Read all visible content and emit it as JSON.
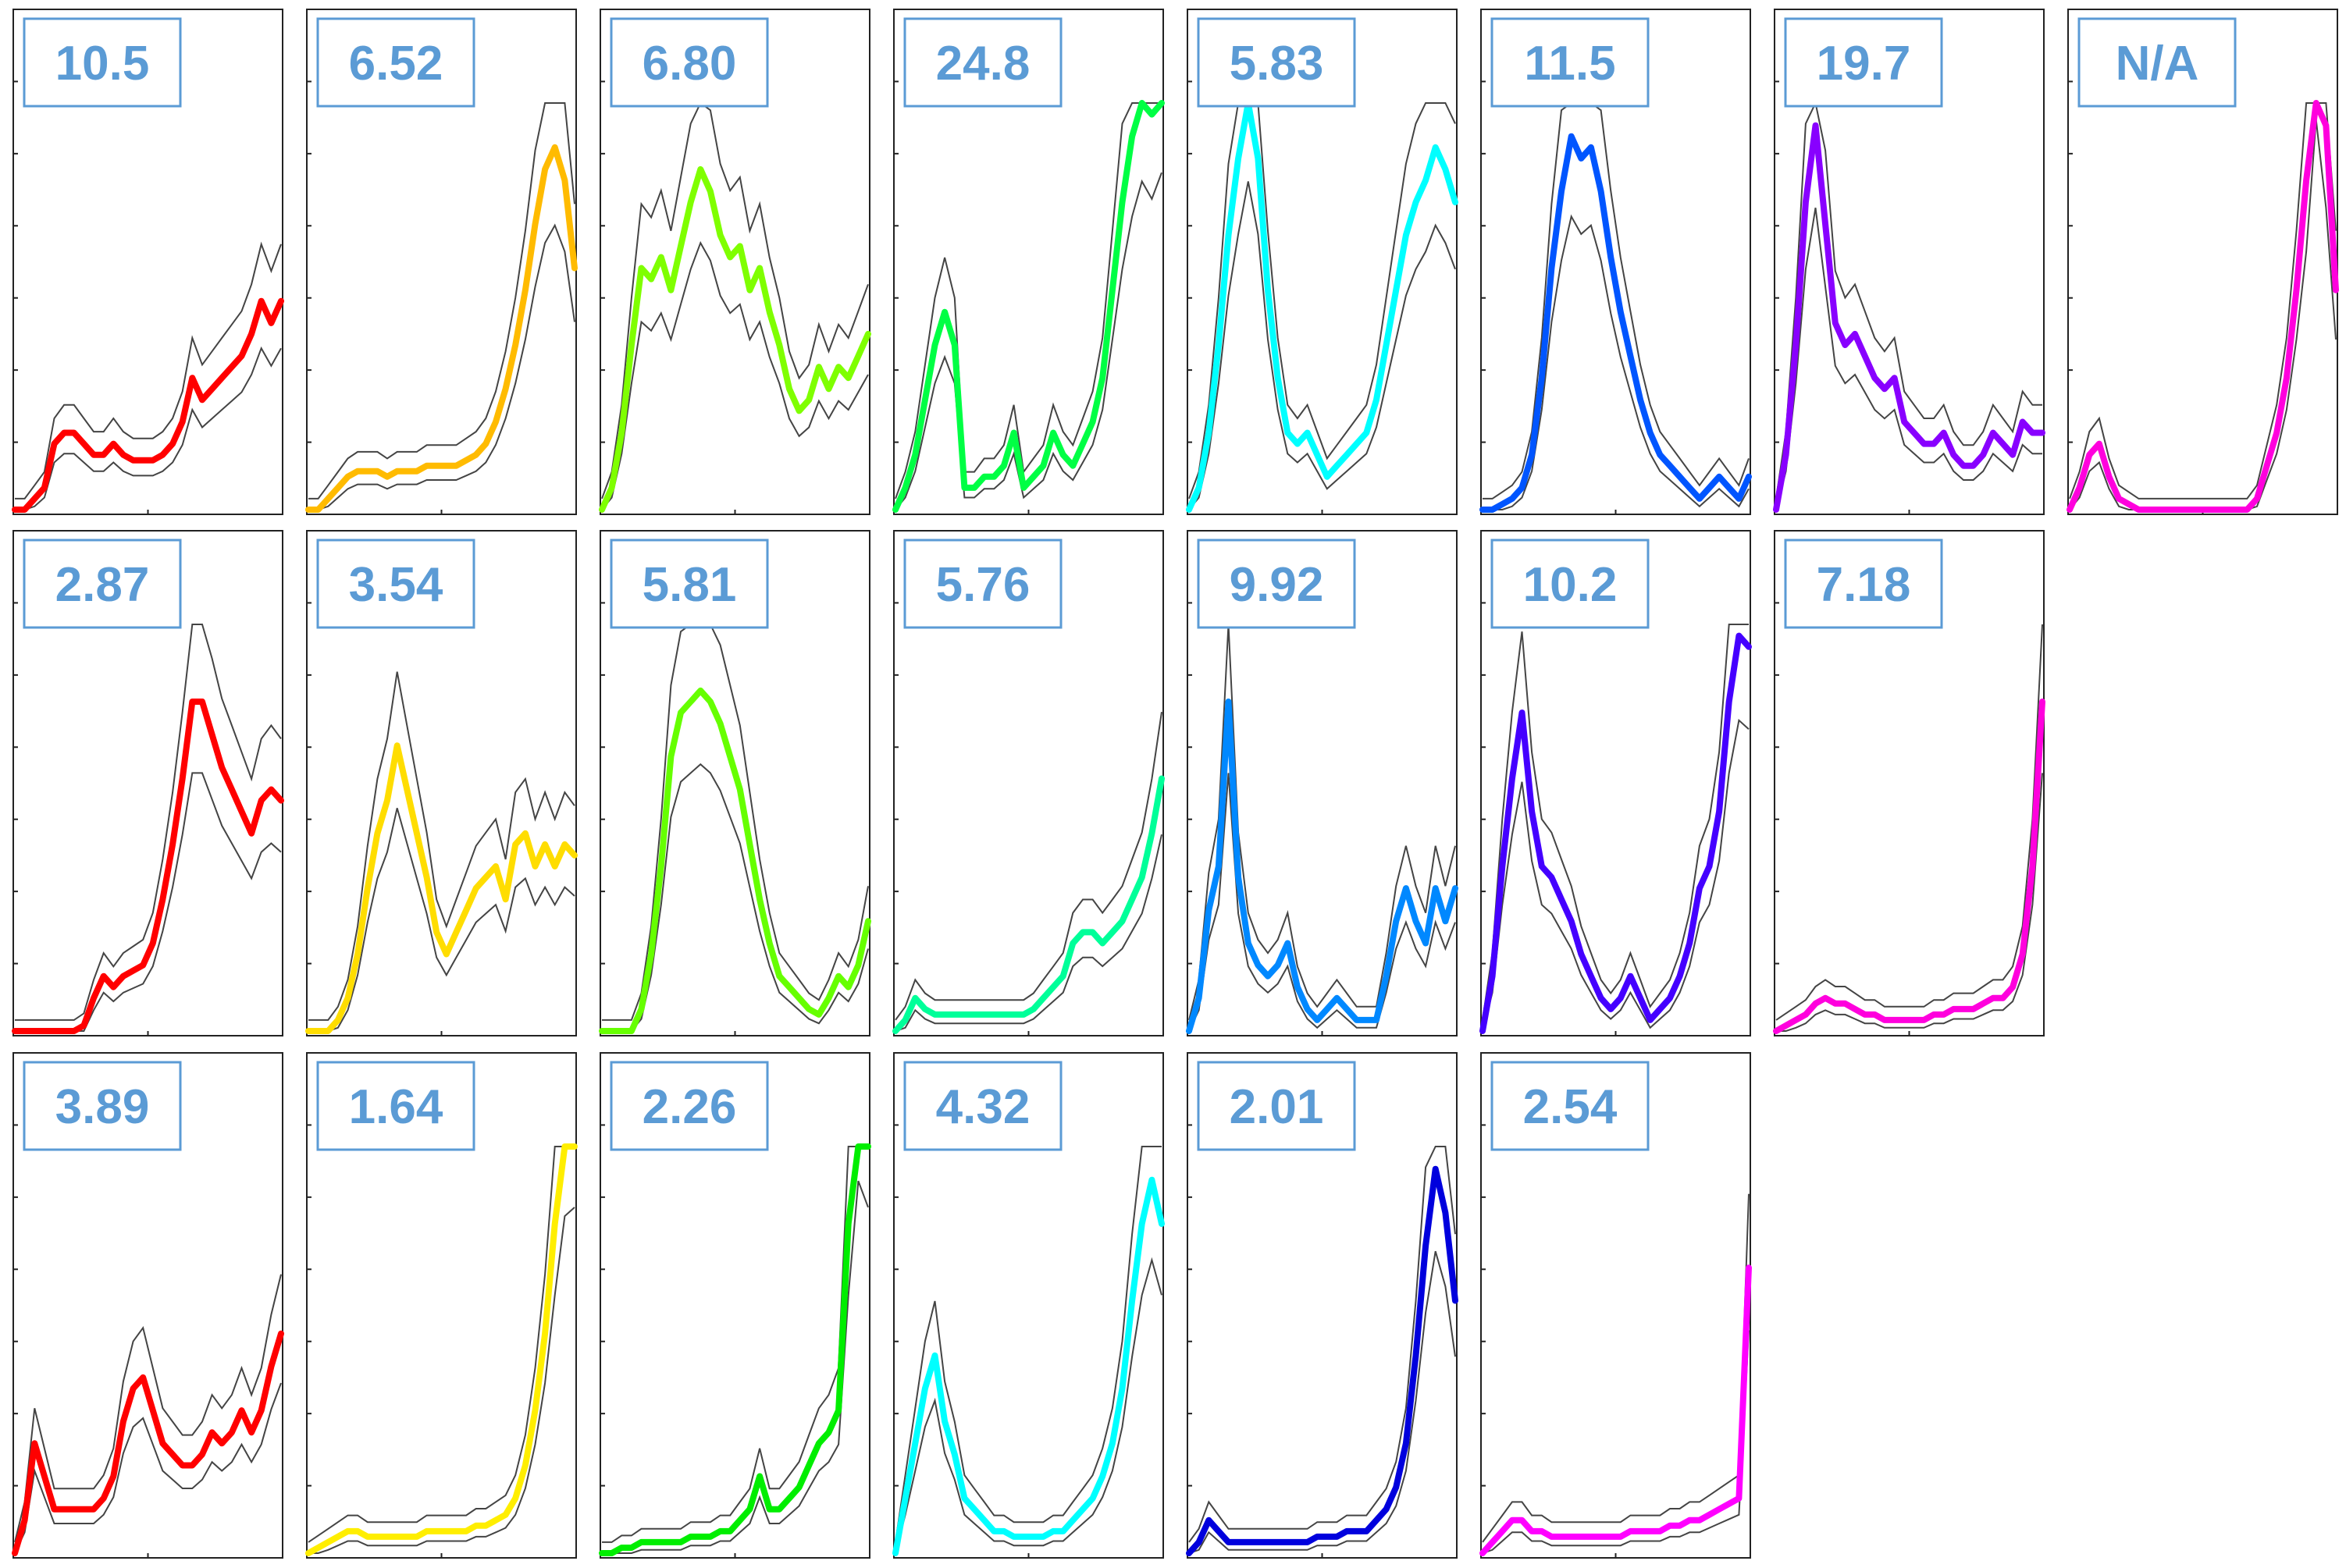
{
  "figure": {
    "chart_data": [
      {
        "type": "line",
        "row": 0,
        "col": 0,
        "label": "10.5",
        "color": "#ff0000",
        "series": [
          {
            "values": [
              0,
              0,
              2,
              4,
              12,
              14,
              14,
              12,
              10,
              10,
              12,
              10,
              9,
              9,
              9,
              10,
              12,
              16,
              24,
              20,
              22,
              24,
              26,
              28,
              32,
              38,
              34,
              38
            ]
          }
        ]
      },
      {
        "type": "line",
        "row": 0,
        "col": 1,
        "label": "6.52",
        "color": "#ffbb00",
        "series": [
          {
            "values": [
              0,
              0,
              2,
              4,
              6,
              7,
              7,
              7,
              6,
              7,
              7,
              7,
              8,
              8,
              8,
              8,
              9,
              10,
              12,
              16,
              22,
              30,
              40,
              52,
              62,
              66,
              60,
              44
            ]
          }
        ]
      },
      {
        "type": "line",
        "row": 0,
        "col": 2,
        "label": "6.80",
        "color": "#7fff00",
        "series": [
          {
            "values": [
              0,
              4,
              14,
              30,
              44,
              42,
              46,
              40,
              48,
              56,
              62,
              58,
              50,
              46,
              48,
              40,
              44,
              36,
              30,
              22,
              18,
              20,
              26,
              22,
              26,
              24,
              28,
              32
            ]
          }
        ]
      },
      {
        "type": "line",
        "row": 0,
        "col": 3,
        "label": "24.8",
        "color": "#00ff44",
        "series": [
          {
            "values": [
              0,
              4,
              10,
              20,
              30,
              36,
              30,
              4,
              4,
              6,
              6,
              8,
              14,
              4,
              6,
              8,
              14,
              10,
              8,
              12,
              16,
              24,
              40,
              56,
              68,
              76,
              72,
              78
            ]
          }
        ]
      },
      {
        "type": "line",
        "row": 0,
        "col": 4,
        "label": "5.83",
        "color": "#00ffff",
        "series": [
          {
            "values": [
              0,
              4,
              14,
              30,
              50,
              64,
              76,
              64,
              40,
              24,
              14,
              12,
              14,
              10,
              6,
              8,
              10,
              12,
              14,
              20,
              30,
              40,
              50,
              56,
              60,
              66,
              62,
              56
            ]
          }
        ]
      },
      {
        "type": "line",
        "row": 0,
        "col": 5,
        "label": "11.5",
        "color": "#0055ff",
        "series": [
          {
            "values": [
              0,
              0,
              1,
              2,
              4,
              10,
              24,
              44,
              58,
              68,
              64,
              66,
              58,
              46,
              36,
              28,
              20,
              14,
              10,
              8,
              6,
              4,
              2,
              4,
              6,
              4,
              2,
              6
            ]
          }
        ]
      },
      {
        "type": "line",
        "row": 0,
        "col": 6,
        "label": "19.7",
        "color": "#8800ff",
        "series": [
          {
            "values": [
              0,
              10,
              30,
              56,
              70,
              52,
              34,
              30,
              32,
              28,
              24,
              22,
              24,
              16,
              14,
              12,
              12,
              14,
              10,
              8,
              8,
              10,
              14,
              12,
              10,
              16,
              14,
              14
            ]
          }
        ]
      },
      {
        "type": "line",
        "row": 0,
        "col": 7,
        "label": "N/A",
        "color": "#ff00dd",
        "series": [
          {
            "values": [
              0,
              4,
              10,
              12,
              6,
              2,
              1,
              0,
              0,
              0,
              0,
              0,
              0,
              0,
              0,
              0,
              0,
              0,
              0,
              2,
              8,
              14,
              24,
              40,
              60,
              90,
              70,
              40
            ]
          }
        ]
      },
      {
        "type": "line",
        "row": 1,
        "col": 0,
        "label": "2.87",
        "color": "#ff0000",
        "series": [
          {
            "values": [
              0,
              0,
              0,
              0,
              0,
              0,
              0,
              1,
              6,
              10,
              8,
              10,
              11,
              12,
              16,
              24,
              34,
              46,
              60,
              60,
              54,
              48,
              44,
              40,
              36,
              42,
              44,
              42
            ]
          }
        ]
      },
      {
        "type": "line",
        "row": 1,
        "col": 1,
        "label": "3.54",
        "color": "#ffdd00",
        "series": [
          {
            "values": [
              0,
              0,
              0,
              2,
              6,
              14,
              26,
              36,
              42,
              52,
              44,
              36,
              28,
              18,
              14,
              18,
              22,
              26,
              28,
              30,
              24,
              34,
              36,
              30,
              34,
              30,
              34,
              32
            ]
          }
        ]
      },
      {
        "type": "line",
        "row": 1,
        "col": 2,
        "label": "5.81",
        "color": "#66ff00",
        "series": [
          {
            "values": [
              0,
              0,
              0,
              0,
              4,
              14,
              30,
              50,
              58,
              60,
              62,
              60,
              56,
              50,
              44,
              34,
              24,
              16,
              10,
              8,
              6,
              4,
              3,
              6,
              10,
              8,
              12,
              20
            ]
          }
        ]
      },
      {
        "type": "line",
        "row": 1,
        "col": 3,
        "label": "5.76",
        "color": "#00ff99",
        "series": [
          {
            "values": [
              0,
              2,
              6,
              4,
              3,
              3,
              3,
              3,
              3,
              3,
              3,
              3,
              3,
              3,
              4,
              6,
              8,
              10,
              16,
              18,
              18,
              16,
              18,
              20,
              24,
              28,
              36,
              46
            ]
          }
        ]
      },
      {
        "type": "line",
        "row": 1,
        "col": 4,
        "label": "9.92",
        "color": "#0088ff",
        "series": [
          {
            "values": [
              0,
              6,
              22,
              30,
              60,
              28,
              16,
              12,
              10,
              12,
              16,
              8,
              4,
              2,
              4,
              6,
              4,
              2,
              2,
              2,
              10,
              20,
              26,
              20,
              16,
              26,
              20,
              26
            ]
          }
        ]
      },
      {
        "type": "line",
        "row": 1,
        "col": 5,
        "label": "10.2",
        "color": "#4400ff",
        "series": [
          {
            "values": [
              0,
              10,
              30,
              46,
              58,
              40,
              30,
              28,
              24,
              20,
              14,
              10,
              6,
              4,
              6,
              10,
              6,
              2,
              4,
              6,
              10,
              16,
              26,
              30,
              40,
              60,
              72,
              70
            ]
          }
        ]
      },
      {
        "type": "line",
        "row": 1,
        "col": 6,
        "label": "7.18",
        "color": "#ff00dd",
        "series": [
          {
            "values": [
              0,
              1,
              2,
              3,
              5,
              6,
              5,
              5,
              4,
              3,
              3,
              2,
              2,
              2,
              2,
              2,
              3,
              3,
              4,
              4,
              4,
              5,
              6,
              6,
              8,
              14,
              30,
              60
            ]
          }
        ]
      },
      {
        "type": "line",
        "row": 2,
        "col": 0,
        "label": "3.89",
        "color": "#ff0000",
        "series": [
          {
            "values": [
              0,
              6,
              20,
              14,
              8,
              8,
              8,
              8,
              8,
              10,
              14,
              24,
              30,
              32,
              26,
              20,
              18,
              16,
              16,
              18,
              22,
              20,
              22,
              26,
              22,
              26,
              34,
              40
            ]
          }
        ]
      },
      {
        "type": "line",
        "row": 2,
        "col": 1,
        "label": "1.64",
        "color": "#ffee00",
        "series": [
          {
            "values": [
              0,
              1,
              2,
              3,
              4,
              4,
              3,
              3,
              3,
              3,
              3,
              3,
              4,
              4,
              4,
              4,
              4,
              5,
              5,
              6,
              7,
              10,
              16,
              26,
              40,
              60,
              78,
              80
            ]
          }
        ]
      },
      {
        "type": "line",
        "row": 2,
        "col": 2,
        "label": "2.26",
        "color": "#00ee00",
        "series": [
          {
            "values": [
              0,
              0,
              1,
              1,
              2,
              2,
              2,
              2,
              2,
              3,
              3,
              3,
              4,
              4,
              6,
              8,
              14,
              8,
              8,
              10,
              12,
              16,
              20,
              22,
              26,
              60,
              86,
              80
            ]
          }
        ]
      },
      {
        "type": "line",
        "row": 2,
        "col": 3,
        "label": "4.32",
        "color": "#00ffff",
        "series": [
          {
            "values": [
              0,
              10,
              20,
              30,
              36,
              24,
              18,
              10,
              8,
              6,
              4,
              4,
              3,
              3,
              3,
              3,
              4,
              4,
              6,
              8,
              10,
              14,
              20,
              30,
              46,
              60,
              68,
              60
            ]
          }
        ]
      },
      {
        "type": "line",
        "row": 2,
        "col": 4,
        "label": "2.01",
        "color": "#0000dd",
        "series": [
          {
            "values": [
              0,
              2,
              6,
              4,
              2,
              2,
              2,
              2,
              2,
              2,
              2,
              2,
              2,
              3,
              3,
              3,
              4,
              4,
              4,
              6,
              8,
              12,
              20,
              36,
              56,
              70,
              62,
              46
            ]
          }
        ]
      },
      {
        "type": "line",
        "row": 2,
        "col": 5,
        "label": "2.54",
        "color": "#ff00ff",
        "series": [
          {
            "values": [
              0,
              2,
              4,
              6,
              6,
              4,
              4,
              3,
              3,
              3,
              3,
              3,
              3,
              3,
              3,
              4,
              4,
              4,
              4,
              5,
              5,
              6,
              6,
              7,
              8,
              9,
              10,
              52
            ]
          }
        ]
      }
    ]
  }
}
